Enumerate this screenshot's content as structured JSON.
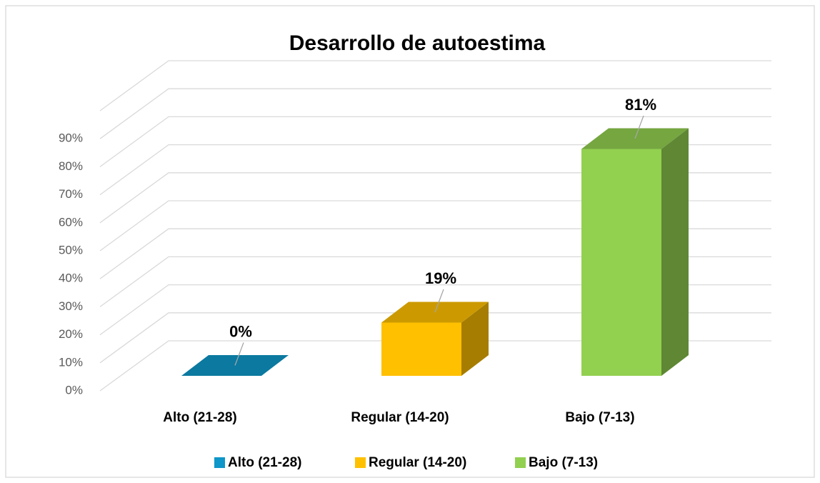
{
  "chart_data": {
    "type": "bar3d",
    "title": "Desarrollo de autoestima",
    "categories": [
      "Alto  (21-28)",
      "Regular (14-20)",
      "Bajo (7-13)"
    ],
    "values": [
      0,
      19,
      81
    ],
    "value_labels": [
      "0%",
      "19%",
      "81%"
    ],
    "colors": [
      "#0e97c8",
      "#ffc000",
      "#92d050"
    ],
    "ylim": [
      0,
      100
    ],
    "yticks": [
      {
        "value": 0,
        "label": "0%"
      },
      {
        "value": 10,
        "label": "10%"
      },
      {
        "value": 20,
        "label": "20%"
      },
      {
        "value": 30,
        "label": "30%"
      },
      {
        "value": 40,
        "label": "40%"
      },
      {
        "value": 50,
        "label": "50%"
      },
      {
        "value": 60,
        "label": "60%"
      },
      {
        "value": 70,
        "label": "70%"
      },
      {
        "value": 80,
        "label": "80%"
      },
      {
        "value": 90,
        "label": "90%"
      }
    ],
    "grid": true,
    "legend": "bottom"
  }
}
